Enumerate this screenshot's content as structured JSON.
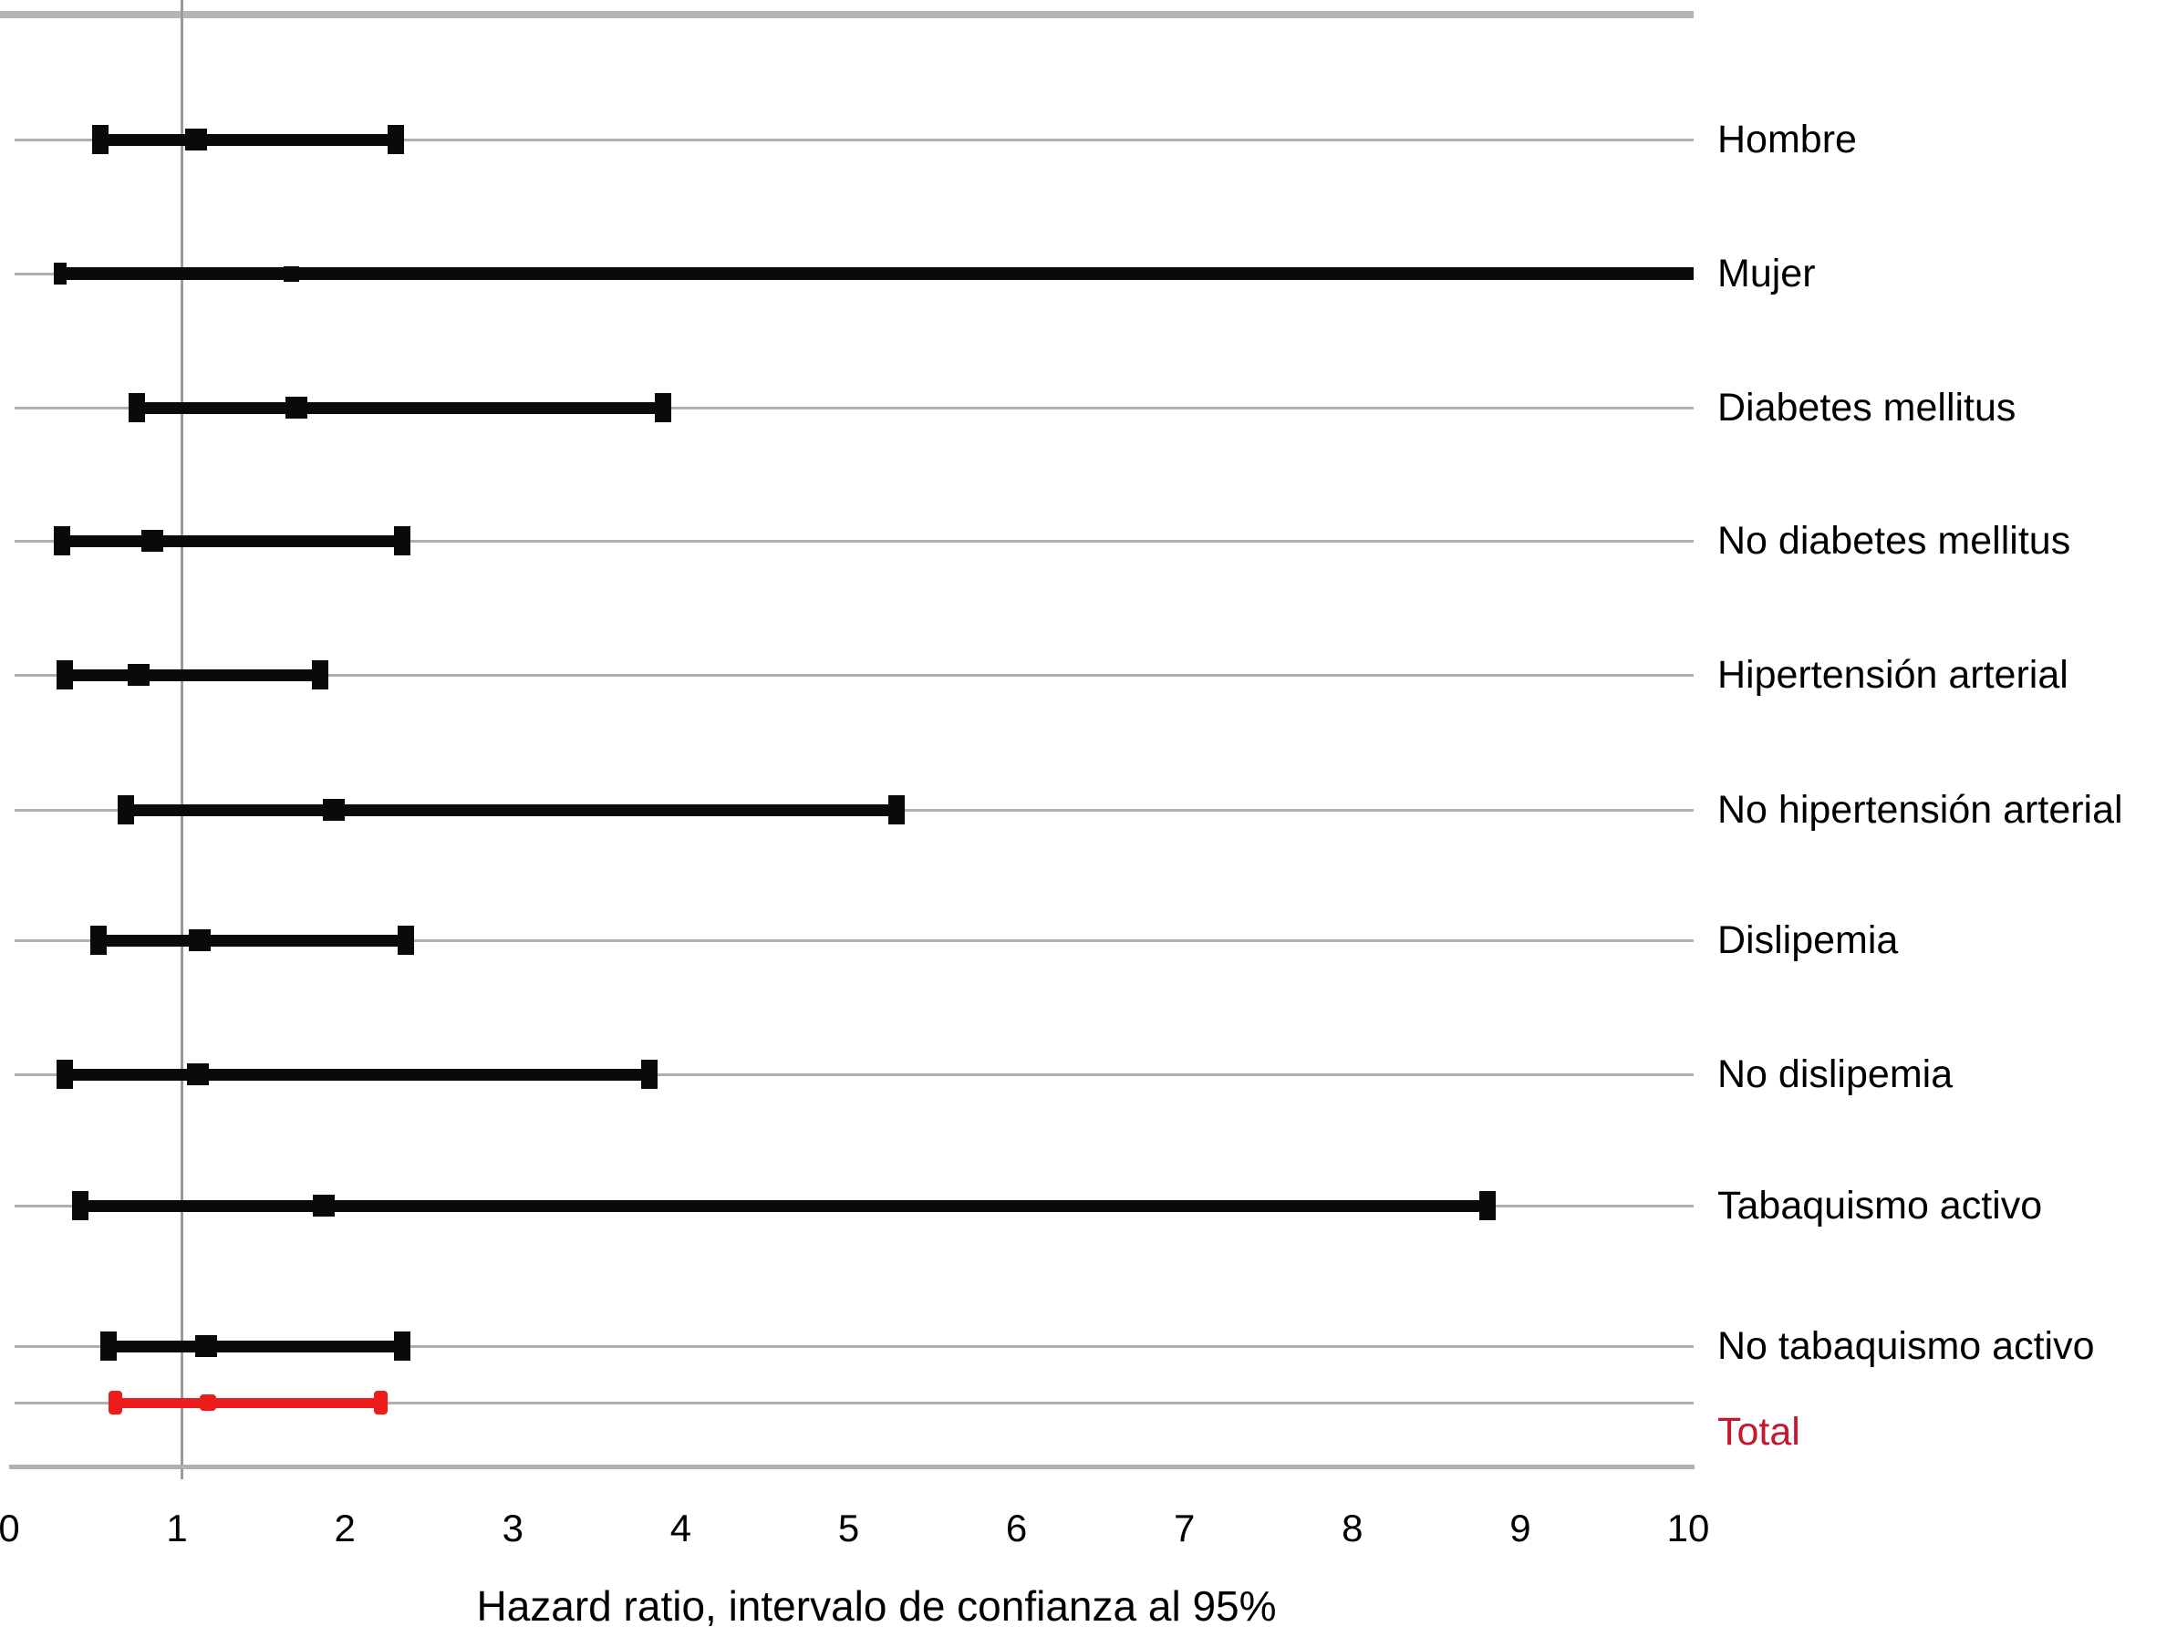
{
  "chart_data": {
    "type": "scatter",
    "subtype": "forest-plot",
    "title": "",
    "xlabel": "Hazard ratio, intervalo de confianza al 95%",
    "ylabel": "",
    "xlim": [
      0,
      10
    ],
    "x_ticks": [
      0,
      1,
      2,
      3,
      4,
      5,
      6,
      7,
      8,
      9,
      10
    ],
    "reference_line_x": 1,
    "grid": "horizontal gray line per row, vertical gray reference line at x=1, gray top border and bottom axis",
    "legend_position": "none",
    "colors": {
      "bar_black": "#0a0a0a",
      "bar_red": "#ec1c1c",
      "total_label_red": "#c5172e",
      "gridline_gray": "#b0b0b0",
      "reference_line_gray": "#9a9a9a"
    },
    "rows": [
      {
        "label": "Hombre",
        "hr": 1.08,
        "ci_low": 0.51,
        "ci_high": 2.27,
        "color": "black"
      },
      {
        "label": "Mujer",
        "hr": 1.65,
        "ci_low": 0.27,
        "ci_high": 10,
        "ci_high_clipped": true,
        "small_markers": true,
        "color": "black"
      },
      {
        "label": "Diabetes mellitus",
        "hr": 1.68,
        "ci_low": 0.73,
        "ci_high": 3.86,
        "color": "black"
      },
      {
        "label": "No diabetes mellitus",
        "hr": 0.82,
        "ci_low": 0.28,
        "ci_high": 2.31,
        "color": "black"
      },
      {
        "label": "Hipertensión arterial",
        "hr": 0.74,
        "ci_low": 0.3,
        "ci_high": 1.82,
        "color": "black"
      },
      {
        "label": "No hipertensión arterial",
        "hr": 1.9,
        "ci_low": 0.66,
        "ci_high": 5.25,
        "color": "black"
      },
      {
        "label": "Dislipemia",
        "hr": 1.1,
        "ci_low": 0.5,
        "ci_high": 2.33,
        "color": "black"
      },
      {
        "label": "No dislipemia",
        "hr": 1.09,
        "ci_low": 0.3,
        "ci_high": 3.78,
        "color": "black"
      },
      {
        "label": "Tabaquismo activo",
        "hr": 1.84,
        "ci_low": 0.39,
        "ci_high": 8.77,
        "color": "black"
      },
      {
        "label": "No tabaquismo activo",
        "hr": 1.14,
        "ci_low": 0.56,
        "ci_high": 2.31,
        "color": "black"
      },
      {
        "label": "Total",
        "hr": 1.15,
        "ci_low": 0.6,
        "ci_high": 2.18,
        "color": "red"
      }
    ]
  }
}
